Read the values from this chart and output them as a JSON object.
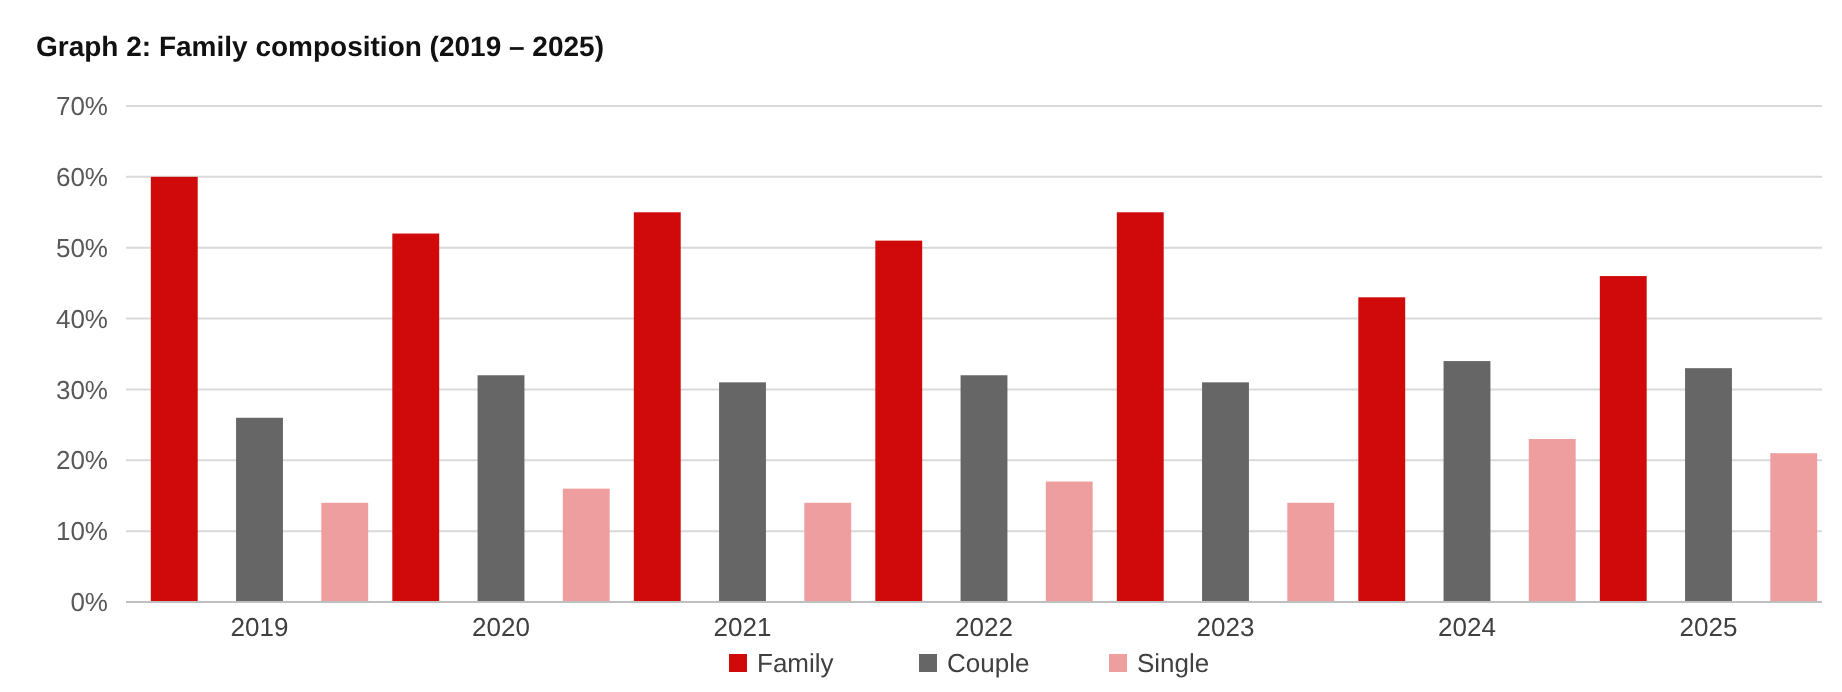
{
  "chart_data": {
    "type": "bar",
    "title": "Graph 2: Family composition (2019 – 2025)",
    "categories": [
      "2019",
      "2020",
      "2021",
      "2022",
      "2023",
      "2024",
      "2025"
    ],
    "series": [
      {
        "name": "Family",
        "color": "#d00a0a",
        "values": [
          60,
          52,
          55,
          51,
          55,
          43,
          46
        ]
      },
      {
        "name": "Couple",
        "color": "#666666",
        "values": [
          26,
          32,
          31,
          32,
          31,
          34,
          33
        ]
      },
      {
        "name": "Single",
        "color": "#ef9ea0",
        "values": [
          14,
          16,
          14,
          17,
          14,
          23,
          21
        ]
      }
    ],
    "ylim": [
      0,
      70
    ],
    "yticks": [
      {
        "value": 0,
        "label": "0%"
      },
      {
        "value": 10,
        "label": "10%"
      },
      {
        "value": 20,
        "label": "20%"
      },
      {
        "value": 30,
        "label": "30%"
      },
      {
        "value": 40,
        "label": "40%"
      },
      {
        "value": 50,
        "label": "50%"
      },
      {
        "value": 60,
        "label": "60%"
      },
      {
        "value": 70,
        "label": "70%"
      }
    ],
    "grid": "y",
    "legend": "bottom"
  }
}
